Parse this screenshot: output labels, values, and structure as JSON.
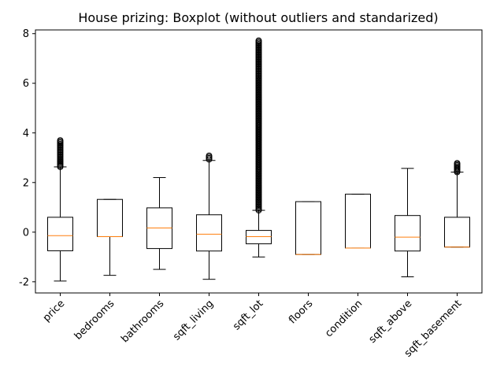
{
  "chart_data": {
    "type": "boxplot",
    "title": "House prizing: Boxplot (without outliers and standarized)",
    "xlabel": "",
    "ylabel": "",
    "ylim": [
      -2.45,
      8.15
    ],
    "yticks": [
      -2,
      0,
      2,
      4,
      6,
      8
    ],
    "grid": false,
    "colors": {
      "box": "#000000",
      "median": "#ff7f0e",
      "background": "#ffffff"
    },
    "categories": [
      "price",
      "bedrooms",
      "bathrooms",
      "sqft_living",
      "sqft_lot",
      "floors",
      "condition",
      "sqft_above",
      "sqft_basement"
    ],
    "boxes": [
      {
        "name": "price",
        "whisker_low": -1.97,
        "q1": -0.75,
        "median": -0.14,
        "q3": 0.6,
        "whisker_high": 2.63,
        "outliers_range": [
          2.63,
          3.7
        ]
      },
      {
        "name": "bedrooms",
        "whisker_low": -1.74,
        "q1": -0.18,
        "median": -0.18,
        "q3": 1.32,
        "whisker_high": 1.32,
        "outliers_range": null
      },
      {
        "name": "bathrooms",
        "whisker_low": -1.5,
        "q1": -0.66,
        "median": 0.17,
        "q3": 0.98,
        "whisker_high": 2.2,
        "outliers_range": null
      },
      {
        "name": "sqft_living",
        "whisker_low": -1.9,
        "q1": -0.76,
        "median": -0.08,
        "q3": 0.7,
        "whisker_high": 2.89,
        "outliers_range": [
          2.93,
          3.08
        ]
      },
      {
        "name": "sqft_lot",
        "whisker_low": -1.0,
        "q1": -0.47,
        "median": -0.18,
        "q3": 0.07,
        "whisker_high": 0.88,
        "outliers_range": [
          0.88,
          7.72
        ]
      },
      {
        "name": "floors",
        "whisker_low": -0.9,
        "q1": -0.9,
        "median": -0.9,
        "q3": 1.23,
        "whisker_high": 1.23,
        "outliers_range": null
      },
      {
        "name": "condition",
        "whisker_low": -0.64,
        "q1": -0.64,
        "median": -0.64,
        "q3": 1.53,
        "whisker_high": 1.53,
        "outliers_range": null
      },
      {
        "name": "sqft_above",
        "whisker_low": -1.8,
        "q1": -0.76,
        "median": -0.2,
        "q3": 0.67,
        "whisker_high": 2.57,
        "outliers_range": null
      },
      {
        "name": "sqft_basement",
        "whisker_low": -0.6,
        "q1": -0.6,
        "median": -0.6,
        "q3": 0.6,
        "whisker_high": 2.42,
        "outliers_range": [
          2.42,
          2.78
        ]
      }
    ]
  }
}
